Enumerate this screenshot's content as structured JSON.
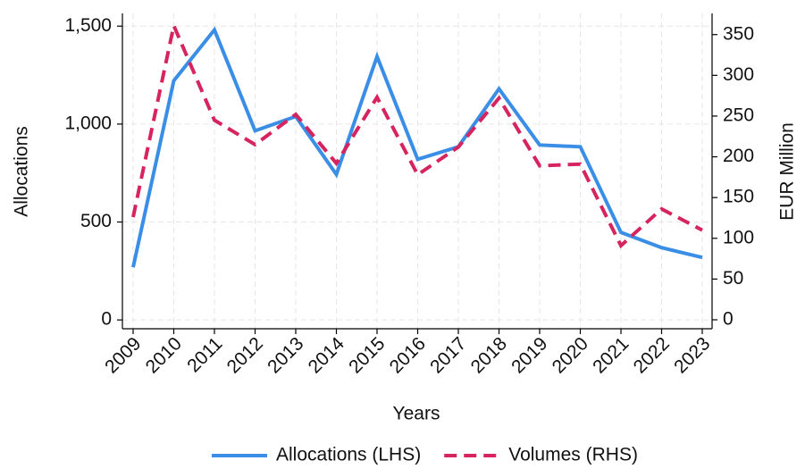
{
  "chart_data": {
    "type": "line",
    "x_label": "Years",
    "y_label": "Allocations",
    "y2_label": "EUR Million",
    "categories": [
      "2009",
      "2010",
      "2011",
      "2012",
      "2013",
      "2014",
      "2015",
      "2016",
      "2017",
      "2018",
      "2019",
      "2020",
      "2021",
      "2022",
      "2023"
    ],
    "series": [
      {
        "name": "Allocations (LHS)",
        "color": "#3a8ee6",
        "dash": false,
        "axis": "y",
        "values": [
          269,
          1221,
          1481,
          966,
          1039,
          743,
          1345,
          820,
          884,
          1180,
          893,
          884,
          447,
          369,
          319
        ]
      },
      {
        "name": "Volumes (RHS)",
        "color": "#d6245f",
        "dash": true,
        "axis": "y2",
        "values": [
          126,
          361,
          245,
          215,
          252,
          192,
          273,
          178,
          212,
          272,
          189,
          191,
          91,
          136,
          110
        ]
      }
    ],
    "ylim": [
      -45,
      1565
    ],
    "yticks": [
      0,
      500,
      {
        "value": 1000,
        "label": "1,000"
      },
      {
        "value": 1500,
        "label": "1,500"
      }
    ],
    "y2lim": [
      -11,
      376
    ],
    "y2ticks": [
      0,
      50,
      100,
      150,
      200,
      250,
      300,
      350
    ],
    "grid": true,
    "legend": "bottom"
  }
}
